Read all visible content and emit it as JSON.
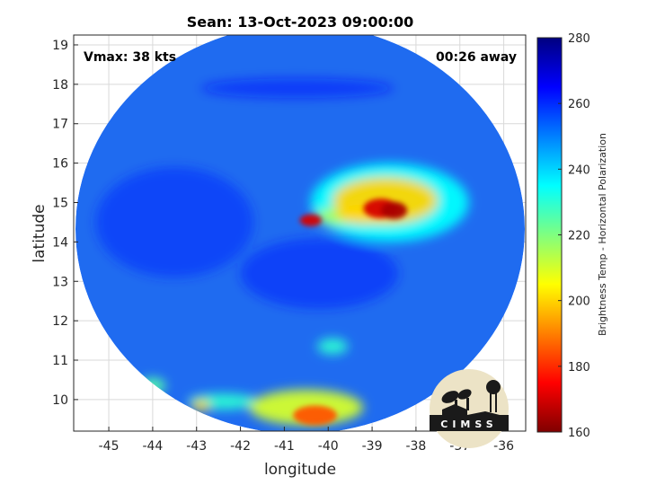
{
  "chart_data": {
    "type": "heatmap",
    "title": "Sean: 13-Oct-2023 09:00:00",
    "xlabel": "longitude",
    "ylabel": "latitude",
    "xlim": [
      -45.8,
      -35.5
    ],
    "ylim": [
      9.2,
      19.25
    ],
    "xticks": [
      "-45",
      "-44",
      "-43",
      "-42",
      "-41",
      "-40",
      "-39",
      "-38",
      "-37",
      "-36"
    ],
    "yticks": [
      "10",
      "11",
      "12",
      "13",
      "14",
      "15",
      "16",
      "17",
      "18",
      "19"
    ],
    "grid": true,
    "annotations": {
      "top_left": "Vmax: 38 kts",
      "top_right": "00:26 away"
    },
    "colorbar": {
      "label": "Brightness Temp - Horizontal Polarization",
      "min": 160,
      "max": 280,
      "ticks": [
        "160",
        "180",
        "200",
        "220",
        "240",
        "260",
        "280"
      ],
      "colormap": "jet",
      "placement": "right"
    },
    "background_value": 255,
    "features": [
      {
        "lon": -38.6,
        "lat": 15.0,
        "value": 235,
        "rx": 1.8,
        "ry": 1.0
      },
      {
        "lon": -38.7,
        "lat": 15.05,
        "value": 200,
        "rx": 1.2,
        "ry": 0.6
      },
      {
        "lon": -38.8,
        "lat": 14.85,
        "value": 170,
        "rx": 0.4,
        "ry": 0.25
      },
      {
        "lon": -38.5,
        "lat": 14.8,
        "value": 165,
        "rx": 0.3,
        "ry": 0.22
      },
      {
        "lon": -39.2,
        "lat": 14.7,
        "value": 200,
        "rx": 0.6,
        "ry": 0.25
      },
      {
        "lon": -40.4,
        "lat": 14.55,
        "value": 170,
        "rx": 0.25,
        "ry": 0.15
      },
      {
        "lon": -39.8,
        "lat": 14.65,
        "value": 215,
        "rx": 0.5,
        "ry": 0.2
      },
      {
        "lon": -39.9,
        "lat": 11.35,
        "value": 230,
        "rx": 0.35,
        "ry": 0.2
      },
      {
        "lon": -40.5,
        "lat": 9.8,
        "value": 210,
        "rx": 1.3,
        "ry": 0.45
      },
      {
        "lon": -40.3,
        "lat": 9.6,
        "value": 185,
        "rx": 0.5,
        "ry": 0.25
      },
      {
        "lon": -42.4,
        "lat": 9.95,
        "value": 230,
        "rx": 0.8,
        "ry": 0.2
      },
      {
        "lon": -44.0,
        "lat": 10.35,
        "value": 225,
        "rx": 0.3,
        "ry": 0.2
      },
      {
        "lon": -42.9,
        "lat": 9.85,
        "value": 200,
        "rx": 0.2,
        "ry": 0.15
      },
      {
        "lon": -40.7,
        "lat": 17.9,
        "value": 262,
        "rx": 2.2,
        "ry": 0.25
      },
      {
        "lon": -43.5,
        "lat": 14.5,
        "value": 260,
        "rx": 1.8,
        "ry": 1.4
      },
      {
        "lon": -40.2,
        "lat": 13.2,
        "value": 261,
        "rx": 1.8,
        "ry": 0.9
      }
    ],
    "logo": {
      "text": "CIMSS",
      "placement": "bottom-right"
    }
  }
}
